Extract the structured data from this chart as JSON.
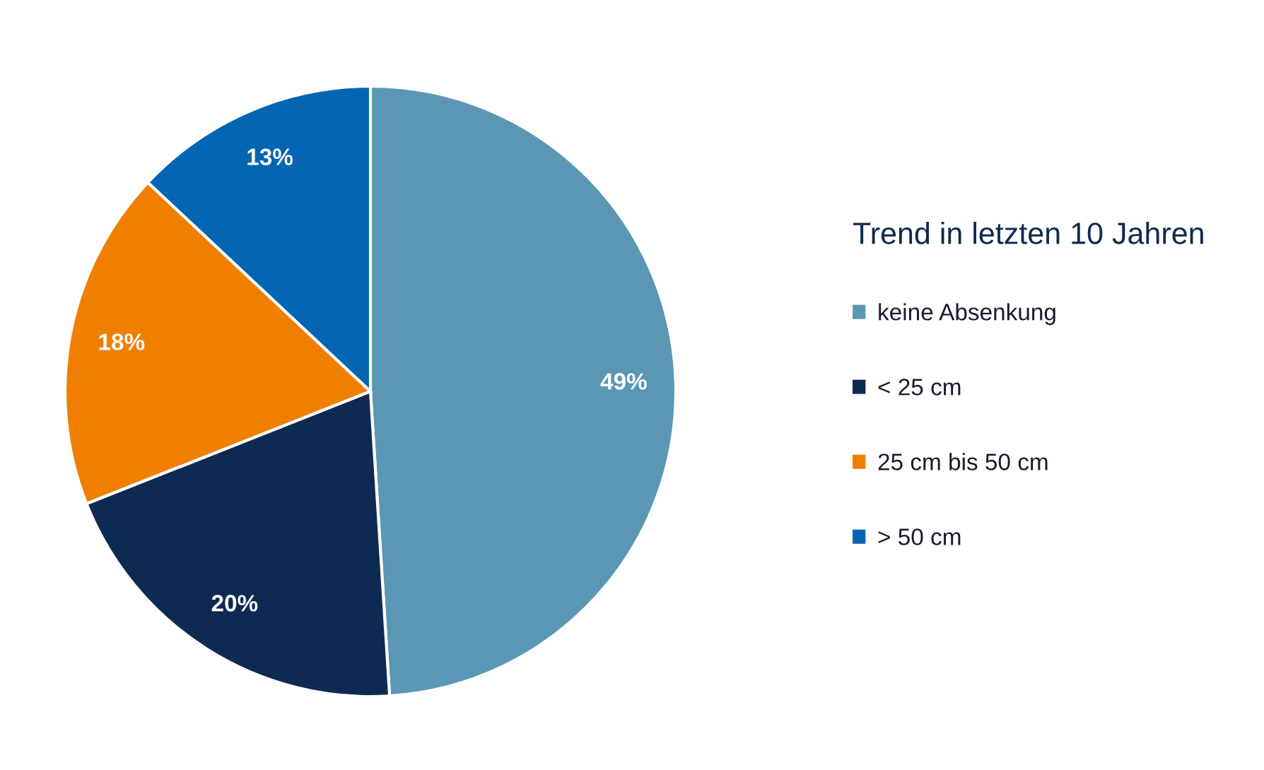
{
  "chart_data": {
    "type": "pie",
    "legend_title": "Trend in letzten 10 Jahren",
    "categories": [
      "keine Absenkung",
      "< 25 cm",
      "25 cm bis 50 cm",
      "> 50 cm"
    ],
    "values": [
      49,
      20,
      18,
      13
    ],
    "colors": [
      "#5b97b5",
      "#0f2a52",
      "#f07f00",
      "#0466b3"
    ],
    "value_labels": [
      "49%",
      "20%",
      "18%",
      "13%"
    ],
    "legend": "right"
  }
}
